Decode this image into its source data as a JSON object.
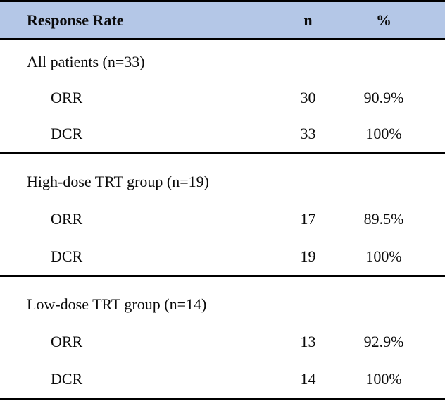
{
  "table": {
    "header": {
      "label": "Response Rate",
      "n": "n",
      "pct": "%"
    },
    "sections": [
      {
        "group": "All patients (n=33)",
        "rows": [
          {
            "label": "ORR",
            "n": "30",
            "pct": "90.9%"
          },
          {
            "label": "DCR",
            "n": "33",
            "pct": "100%"
          }
        ]
      },
      {
        "group": "High-dose TRT group (n=19)",
        "rows": [
          {
            "label": "ORR",
            "n": "17",
            "pct": "89.5%"
          },
          {
            "label": "DCR",
            "n": "19",
            "pct": "100%"
          }
        ]
      },
      {
        "group": "Low-dose TRT group (n=14)",
        "rows": [
          {
            "label": "ORR",
            "n": "13",
            "pct": "92.9%"
          },
          {
            "label": "DCR",
            "n": "14",
            "pct": "100%"
          }
        ]
      }
    ]
  },
  "colors": {
    "header_bg": "#b4c7e7",
    "border": "#000000",
    "text": "#0a0a0a",
    "background": "#ffffff"
  },
  "chart_data": {
    "type": "table",
    "title": "Response Rate",
    "columns": [
      "Response Rate",
      "n",
      "%"
    ],
    "groups": [
      {
        "name": "All patients",
        "n_total": 33,
        "ORR": {
          "n": 30,
          "pct": 90.9
        },
        "DCR": {
          "n": 33,
          "pct": 100
        }
      },
      {
        "name": "High-dose TRT group",
        "n_total": 19,
        "ORR": {
          "n": 17,
          "pct": 89.5
        },
        "DCR": {
          "n": 19,
          "pct": 100
        }
      },
      {
        "name": "Low-dose TRT group",
        "n_total": 14,
        "ORR": {
          "n": 13,
          "pct": 92.9
        },
        "DCR": {
          "n": 14,
          "pct": 100
        }
      }
    ]
  }
}
